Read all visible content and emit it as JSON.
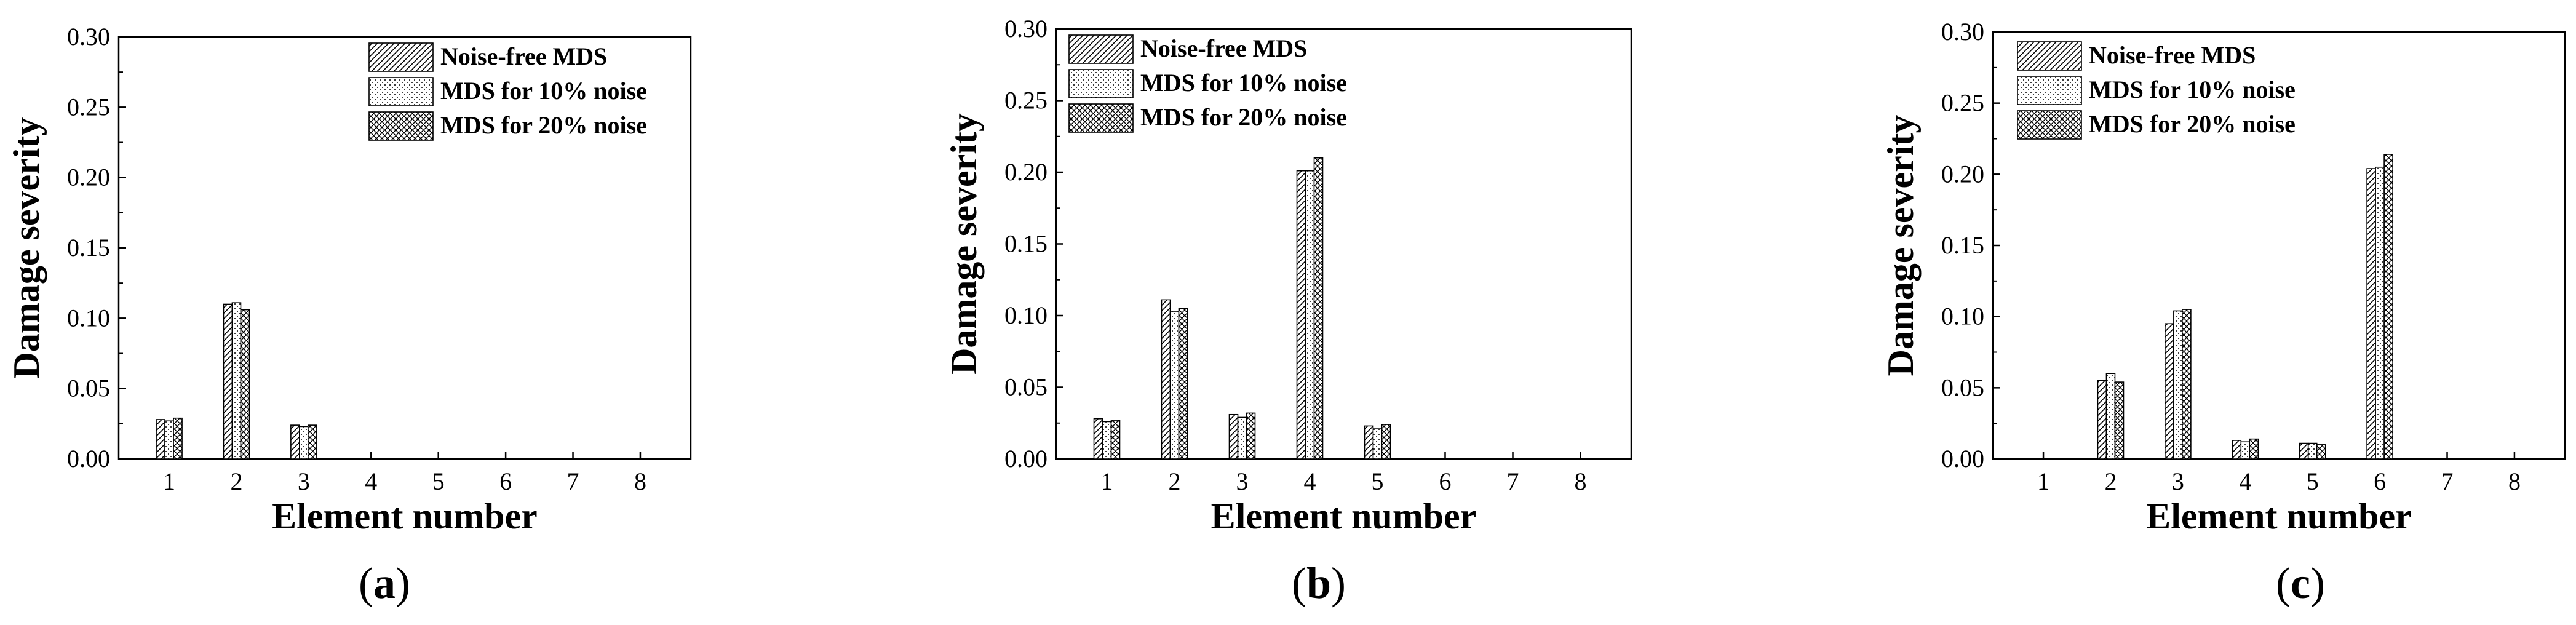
{
  "chart_data": [
    {
      "type": "bar",
      "panel_label": "a",
      "xlabel": "Element number",
      "ylabel": "Damage severity",
      "ylim": [
        0,
        0.3
      ],
      "yticks": [
        "0.00",
        "0.05",
        "0.10",
        "0.15",
        "0.20",
        "0.25",
        "0.30"
      ],
      "categories": [
        "1",
        "2",
        "3",
        "4",
        "5",
        "6",
        "7",
        "8"
      ],
      "legend_position": "top-right",
      "series": [
        {
          "name": "Noise-free MDS",
          "pattern": "diagonal",
          "values": [
            0.028,
            0.11,
            0.024,
            0,
            0,
            0,
            0,
            0
          ]
        },
        {
          "name": "MDS for 10% noise",
          "pattern": "dots",
          "values": [
            0.027,
            0.111,
            0.023,
            0,
            0,
            0,
            0,
            0
          ]
        },
        {
          "name": "MDS for 20% noise",
          "pattern": "crosshatch",
          "values": [
            0.029,
            0.106,
            0.024,
            0,
            0,
            0,
            0,
            0
          ]
        }
      ]
    },
    {
      "type": "bar",
      "panel_label": "b",
      "xlabel": "Element number",
      "ylabel": "Damage severity",
      "ylim": [
        0,
        0.3
      ],
      "yticks": [
        "0.00",
        "0.05",
        "0.10",
        "0.15",
        "0.20",
        "0.25",
        "0.30"
      ],
      "categories": [
        "1",
        "2",
        "3",
        "4",
        "5",
        "6",
        "7",
        "8"
      ],
      "legend_position": "top-left",
      "series": [
        {
          "name": "Noise-free MDS",
          "pattern": "diagonal",
          "values": [
            0.028,
            0.111,
            0.031,
            0.201,
            0.023,
            0,
            0,
            0
          ]
        },
        {
          "name": "MDS for 10% noise",
          "pattern": "dots",
          "values": [
            0.026,
            0.103,
            0.029,
            0.201,
            0.021,
            0,
            0,
            0
          ]
        },
        {
          "name": "MDS for 20% noise",
          "pattern": "crosshatch",
          "values": [
            0.027,
            0.105,
            0.032,
            0.21,
            0.024,
            0,
            0,
            0
          ]
        }
      ]
    },
    {
      "type": "bar",
      "panel_label": "c",
      "xlabel": "Element number",
      "ylabel": "Damage severity",
      "ylim": [
        0,
        0.3
      ],
      "yticks": [
        "0.00",
        "0.05",
        "0.10",
        "0.15",
        "0.20",
        "0.25",
        "0.30"
      ],
      "categories": [
        "1",
        "2",
        "3",
        "4",
        "5",
        "6",
        "7",
        "8"
      ],
      "legend_position": "top-left",
      "series": [
        {
          "name": "Noise-free MDS",
          "pattern": "diagonal",
          "values": [
            0,
            0.055,
            0.095,
            0.013,
            0.011,
            0.204,
            0,
            0
          ]
        },
        {
          "name": "MDS for 10% noise",
          "pattern": "dots",
          "values": [
            0,
            0.06,
            0.104,
            0.012,
            0.011,
            0.205,
            0,
            0
          ]
        },
        {
          "name": "MDS for 20% noise",
          "pattern": "crosshatch",
          "values": [
            0,
            0.054,
            0.105,
            0.014,
            0.01,
            0.214,
            0,
            0
          ]
        }
      ]
    }
  ]
}
